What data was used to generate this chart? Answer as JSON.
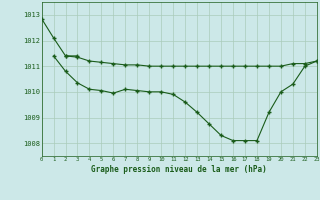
{
  "title": "Graphe pression niveau de la mer (hPa)",
  "bg_color": "#cce8e8",
  "grid_color": "#aaccbb",
  "line_color": "#1a5c1a",
  "xlim": [
    0,
    23
  ],
  "ylim": [
    1007.5,
    1013.5
  ],
  "yticks": [
    1008,
    1009,
    1010,
    1011,
    1012,
    1013
  ],
  "xticks": [
    0,
    1,
    2,
    3,
    4,
    5,
    6,
    7,
    8,
    9,
    10,
    11,
    12,
    13,
    14,
    15,
    16,
    17,
    18,
    19,
    20,
    21,
    22,
    23
  ],
  "series1_x": [
    0,
    1,
    2,
    3
  ],
  "series1_y": [
    1012.85,
    1012.1,
    1011.4,
    1011.4
  ],
  "series2_x": [
    2,
    3,
    4,
    5,
    6,
    7,
    8,
    9,
    10,
    11,
    12,
    13,
    14,
    15,
    16,
    17,
    18,
    19,
    20,
    21,
    22,
    23
  ],
  "series2_y": [
    1011.4,
    1011.35,
    1011.2,
    1011.15,
    1011.1,
    1011.05,
    1011.05,
    1011.0,
    1011.0,
    1011.0,
    1011.0,
    1011.0,
    1011.0,
    1011.0,
    1011.0,
    1011.0,
    1011.0,
    1011.0,
    1011.0,
    1011.1,
    1011.1,
    1011.2
  ],
  "series3_x": [
    1,
    2,
    3,
    4,
    5,
    6,
    7,
    8,
    9,
    10,
    11,
    12,
    13,
    14,
    15,
    16,
    17,
    18,
    19,
    20,
    21,
    22,
    23
  ],
  "series3_y": [
    1011.4,
    1010.8,
    1010.35,
    1010.1,
    1010.05,
    1009.95,
    1010.1,
    1010.05,
    1010.0,
    1010.0,
    1009.9,
    1009.6,
    1009.2,
    1008.75,
    1008.3,
    1008.1,
    1008.1,
    1008.1,
    1009.2,
    1010.0,
    1010.3,
    1011.0,
    1011.2
  ]
}
